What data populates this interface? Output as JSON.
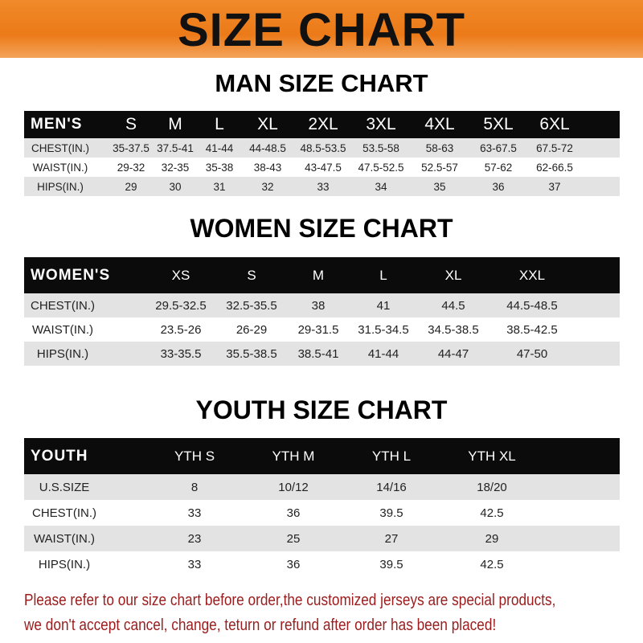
{
  "banner_title": "SIZE CHART",
  "men": {
    "title": "MAN SIZE CHART",
    "header": [
      "MEN'S",
      "S",
      "M",
      "L",
      "XL",
      "2XL",
      "3XL",
      "4XL",
      "5XL",
      "6XL"
    ],
    "rows": [
      [
        "CHEST(IN.)",
        "35-37.5",
        "37.5-41",
        "41-44",
        "44-48.5",
        "48.5-53.5",
        "53.5-58",
        "58-63",
        "63-67.5",
        "67.5-72"
      ],
      [
        "WAIST(IN.)",
        "29-32",
        "32-35",
        "35-38",
        "38-43",
        "43-47.5",
        "47.5-52.5",
        "52.5-57",
        "57-62",
        "62-66.5"
      ],
      [
        "HIPS(IN.)",
        "29",
        "30",
        "31",
        "32",
        "33",
        "34",
        "35",
        "36",
        "37"
      ]
    ]
  },
  "women": {
    "title": "WOMEN SIZE CHART",
    "header": [
      "WOMEN'S",
      "XS",
      "S",
      "M",
      "L",
      "XL",
      "XXL"
    ],
    "rows": [
      [
        "CHEST(IN.)",
        "29.5-32.5",
        "32.5-35.5",
        "38",
        "41",
        "44.5",
        "44.5-48.5"
      ],
      [
        "WAIST(IN.)",
        "23.5-26",
        "26-29",
        "29-31.5",
        "31.5-34.5",
        "34.5-38.5",
        "38.5-42.5"
      ],
      [
        "HIPS(IN.)",
        "33-35.5",
        "35.5-38.5",
        "38.5-41",
        "41-44",
        "44-47",
        "47-50"
      ]
    ]
  },
  "youth": {
    "title": "YOUTH SIZE CHART",
    "header": [
      "YOUTH",
      "YTH S",
      "YTH M",
      "YTH L",
      "YTH XL"
    ],
    "rows": [
      [
        "U.S.SIZE",
        "8",
        "10/12",
        "14/16",
        "18/20"
      ],
      [
        "CHEST(IN.)",
        "33",
        "36",
        "39.5",
        "42.5"
      ],
      [
        "WAIST(IN.)",
        "23",
        "25",
        "27",
        "29"
      ],
      [
        "HIPS(IN.)",
        "33",
        "36",
        "39.5",
        "42.5"
      ]
    ]
  },
  "notice": [
    "Please refer to our size chart before order,the customized jerseys are special products,",
    "we don't accept cancel, change, teturn or refund after order has been placed!"
  ],
  "colors": {
    "banner": "#ec7a18",
    "header_row": "#0b0b0b",
    "stripe": "#e3e3e3",
    "notice": "#9b1c1c"
  }
}
